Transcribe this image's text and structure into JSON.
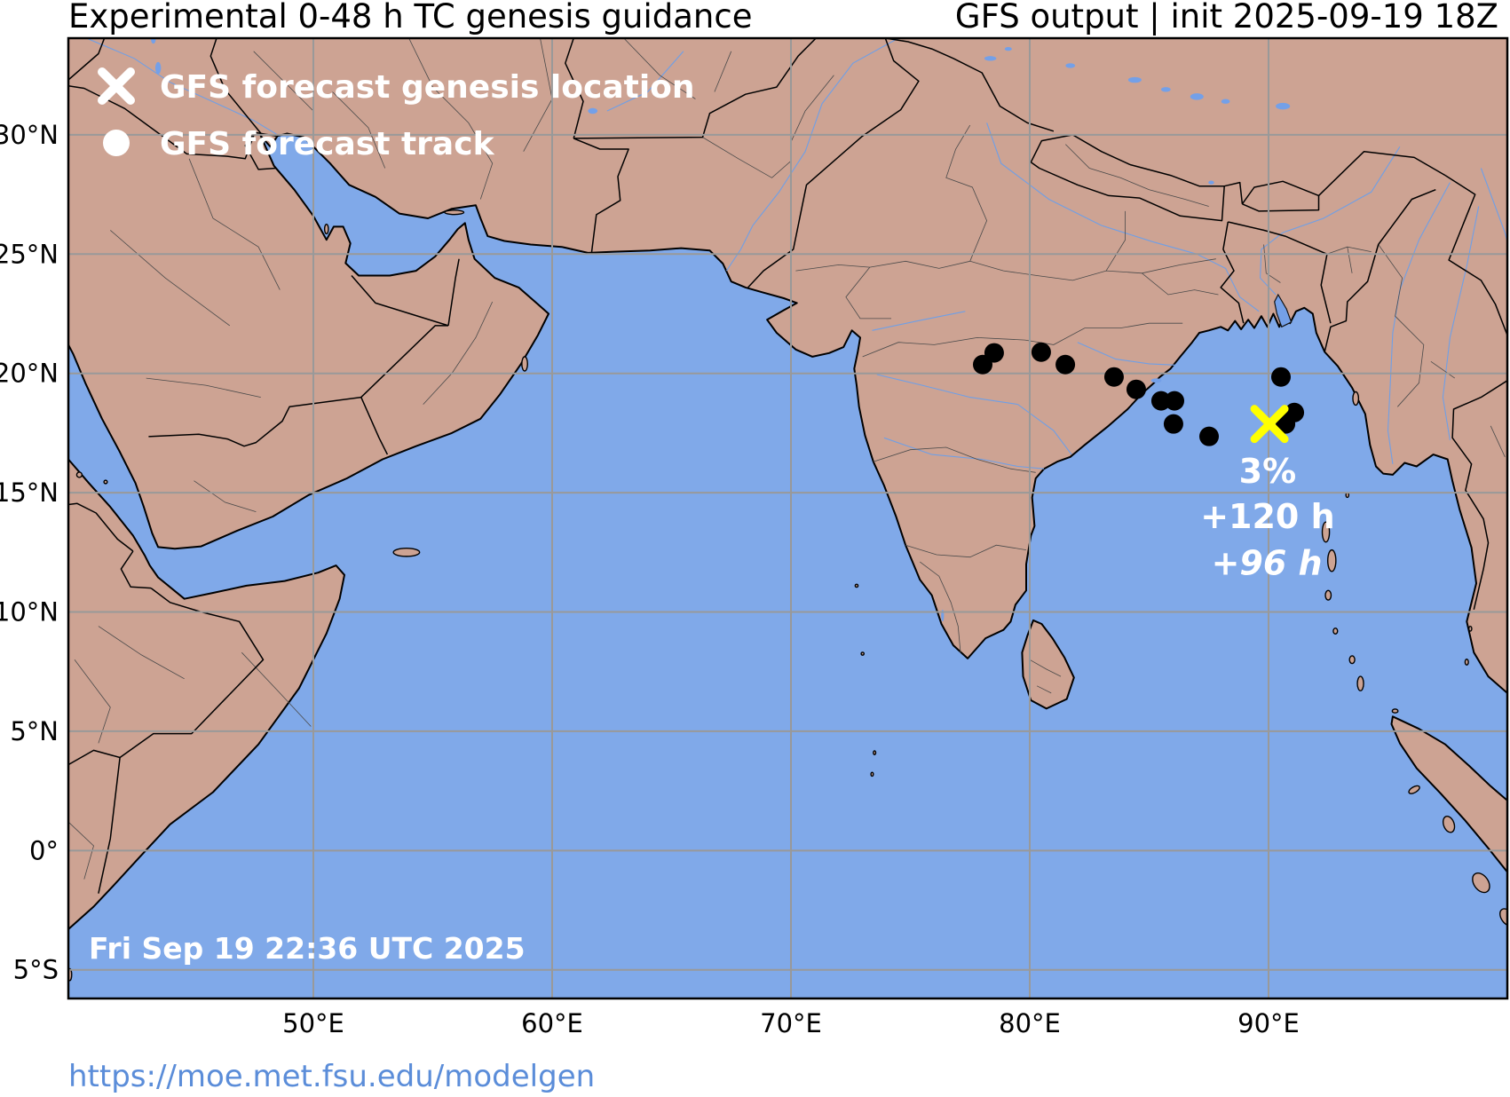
{
  "header": {
    "title_left": "Experimental 0-48 h TC genesis guidance",
    "title_right": "GFS output | init 2025-09-19 18Z"
  },
  "legend": {
    "items": [
      {
        "symbol": "cross",
        "label": "GFS forecast genesis location"
      },
      {
        "symbol": "circle",
        "label": "GFS forecast track"
      }
    ]
  },
  "map": {
    "timestamp": "Fri Sep 19 22:36 UTC 2025",
    "bounds": {
      "lon_min": 39.74,
      "lon_max": 100.0,
      "lat_min": -6.2,
      "lat_max": 34.05
    },
    "lat_ticks": [
      {
        "label": "30°N",
        "value": 30
      },
      {
        "label": "25°N",
        "value": 25
      },
      {
        "label": "20°N",
        "value": 20
      },
      {
        "label": "15°N",
        "value": 15
      },
      {
        "label": "10°N",
        "value": 10
      },
      {
        "label": "5°N",
        "value": 5
      },
      {
        "label": "0°",
        "value": 0
      },
      {
        "label": "5°S",
        "value": -5
      }
    ],
    "lon_ticks": [
      {
        "label": "50°E",
        "value": 50
      },
      {
        "label": "60°E",
        "value": 60
      },
      {
        "label": "70°E",
        "value": 70
      },
      {
        "label": "80°E",
        "value": 80
      },
      {
        "label": "90°E",
        "value": 90
      }
    ],
    "genesis_marker": {
      "lon": 90.04,
      "lat": 17.88
    },
    "annotations": [
      {
        "text": "3%",
        "lon": 89.96,
        "lat": 15.9,
        "italic": false
      },
      {
        "text": "+120 h",
        "lon": 89.96,
        "lat": 14.0,
        "italic": false
      },
      {
        "text": "+96 h",
        "lon": 89.93,
        "lat": 12.05,
        "italic": true
      }
    ],
    "track_points": [
      [
        78.03,
        20.37
      ],
      [
        78.51,
        20.86
      ],
      [
        80.48,
        20.89
      ],
      [
        81.49,
        20.37
      ],
      [
        83.53,
        19.85
      ],
      [
        84.46,
        19.33
      ],
      [
        85.5,
        18.85
      ],
      [
        86.06,
        18.85
      ],
      [
        86.02,
        17.88
      ],
      [
        87.51,
        17.36
      ],
      [
        90.52,
        19.85
      ],
      [
        91.08,
        18.36
      ],
      [
        90.71,
        17.88
      ]
    ],
    "colors": {
      "ocean": "#80a9e9",
      "land": "#cda393",
      "lake": "#74a0e8",
      "grid": "#999999",
      "coast": "#000000",
      "admin": "#4a4a4a",
      "river": "#6f9fe6",
      "genesis_cross": "#ffff00",
      "track_dot": "#000000",
      "map_text": "#ffffff",
      "tick_text": "#000000"
    }
  },
  "footer": {
    "url": "https://moe.met.fsu.edu/modelgen",
    "color": "#5b8dd9"
  }
}
